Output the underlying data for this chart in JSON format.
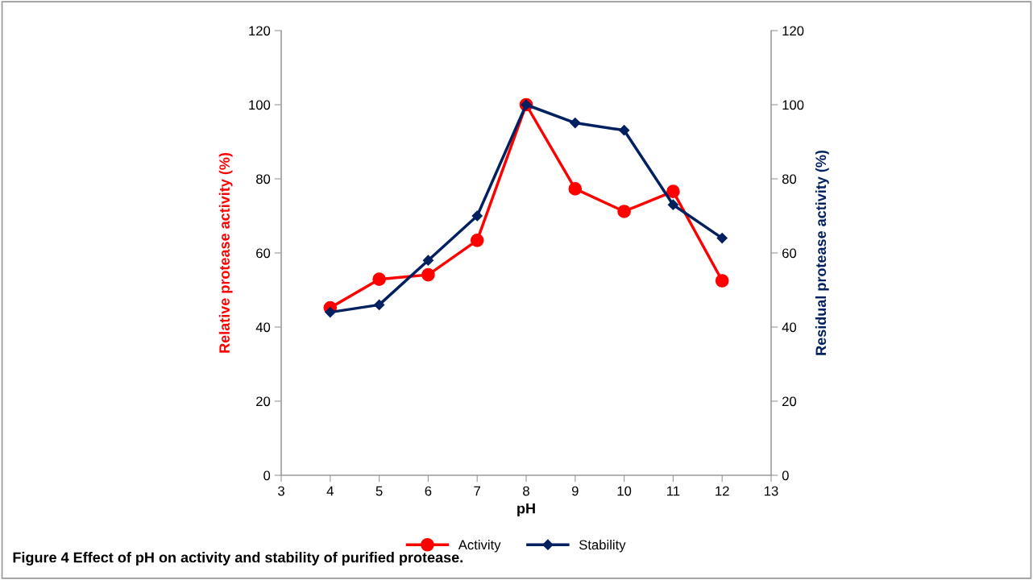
{
  "chart_data": {
    "type": "line",
    "xlabel": "pH",
    "ylabel": "Relative protease activity (%)",
    "y2label": "Residual protease activity (%)",
    "x": [
      4,
      5,
      6,
      7,
      8,
      9,
      10,
      11,
      12
    ],
    "series": [
      {
        "name": "Activity",
        "color": "#ff0000",
        "marker": "circle",
        "values": [
          45.2,
          52.9,
          54.1,
          63.4,
          100,
          77.3,
          71.2,
          76.6,
          52.5
        ]
      },
      {
        "name": "Stability",
        "color": "#002060",
        "marker": "diamond",
        "axis": "y2",
        "values": [
          44,
          46,
          58,
          70,
          100,
          95.1,
          93.1,
          73,
          64
        ]
      }
    ],
    "xlim": [
      3,
      13
    ],
    "xticks": [
      3,
      4,
      5,
      6,
      7,
      8,
      9,
      10,
      11,
      12,
      13
    ],
    "ylim": [
      0,
      120
    ],
    "yticks": [
      0,
      20,
      40,
      60,
      80,
      100,
      120
    ],
    "y2lim": [
      0,
      120
    ],
    "y2ticks": [
      0,
      20,
      40,
      60,
      80,
      100,
      120
    ],
    "grid": false,
    "legend": "bottom",
    "annotations": [
      "Figure 4 Effect of pH on activity and stability of purified protease."
    ]
  }
}
